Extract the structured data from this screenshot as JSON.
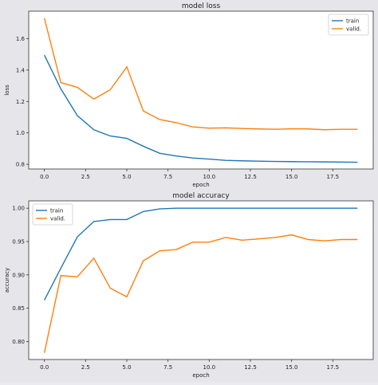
{
  "chart_data": [
    {
      "type": "line",
      "title": "model loss",
      "xlabel": "epoch",
      "ylabel": "loss",
      "xlim": [
        -0.95,
        19.95
      ],
      "ylim": [
        0.77,
        1.775
      ],
      "xticks": [
        0.0,
        2.5,
        5.0,
        7.5,
        10.0,
        12.5,
        15.0,
        17.5
      ],
      "xtick_labels": [
        "0.0",
        "2.5",
        "5.0",
        "7.5",
        "10.0",
        "12.5",
        "15.0",
        "17.5"
      ],
      "yticks": [
        0.8,
        1.0,
        1.2,
        1.4,
        1.6
      ],
      "ytick_labels": [
        "0.8",
        "1.0",
        "1.2",
        "1.4",
        "1.6"
      ],
      "legend_position": "top-right",
      "grid": false,
      "x": [
        0,
        1,
        2,
        3,
        4,
        5,
        6,
        7,
        8,
        9,
        10,
        11,
        12,
        13,
        14,
        15,
        16,
        17,
        18,
        19
      ],
      "series": [
        {
          "name": "train",
          "color": "#1f77b4",
          "values": [
            1.495,
            1.28,
            1.11,
            1.02,
            0.98,
            0.965,
            0.915,
            0.87,
            0.853,
            0.84,
            0.833,
            0.825,
            0.822,
            0.82,
            0.818,
            0.817,
            0.816,
            0.815,
            0.814,
            0.813
          ]
        },
        {
          "name": "valid.",
          "color": "#ff7f0e",
          "values": [
            1.73,
            1.32,
            1.29,
            1.215,
            1.275,
            1.42,
            1.14,
            1.085,
            1.065,
            1.038,
            1.03,
            1.032,
            1.028,
            1.025,
            1.023,
            1.026,
            1.025,
            1.02,
            1.023,
            1.023
          ]
        }
      ]
    },
    {
      "type": "line",
      "title": "model accuracy",
      "xlabel": "epoch",
      "ylabel": "accuracy",
      "xlim": [
        -0.95,
        19.95
      ],
      "ylim": [
        0.773,
        1.011
      ],
      "xticks": [
        0.0,
        2.5,
        5.0,
        7.5,
        10.0,
        12.5,
        15.0,
        17.5
      ],
      "xtick_labels": [
        "0.0",
        "2.5",
        "5.0",
        "7.5",
        "10.0",
        "12.5",
        "15.0",
        "17.5"
      ],
      "yticks": [
        0.8,
        0.85,
        0.9,
        0.95,
        1.0
      ],
      "ytick_labels": [
        "0.80",
        "0.85",
        "0.90",
        "0.95",
        "1.00"
      ],
      "legend_position": "top-left",
      "grid": false,
      "x": [
        0,
        1,
        2,
        3,
        4,
        5,
        6,
        7,
        8,
        9,
        10,
        11,
        12,
        13,
        14,
        15,
        16,
        17,
        18,
        19
      ],
      "series": [
        {
          "name": "train",
          "color": "#1f77b4",
          "values": [
            0.862,
            0.91,
            0.957,
            0.98,
            0.983,
            0.983,
            0.995,
            0.999,
            1.0,
            1.0,
            1.0,
            1.0,
            1.0,
            1.0,
            1.0,
            1.0,
            1.0,
            1.0,
            1.0,
            1.0
          ]
        },
        {
          "name": "valid.",
          "color": "#ff7f0e",
          "values": [
            0.783,
            0.899,
            0.897,
            0.925,
            0.88,
            0.867,
            0.921,
            0.936,
            0.938,
            0.949,
            0.949,
            0.956,
            0.952,
            0.954,
            0.956,
            0.96,
            0.953,
            0.951,
            0.953,
            0.953
          ]
        }
      ]
    }
  ]
}
